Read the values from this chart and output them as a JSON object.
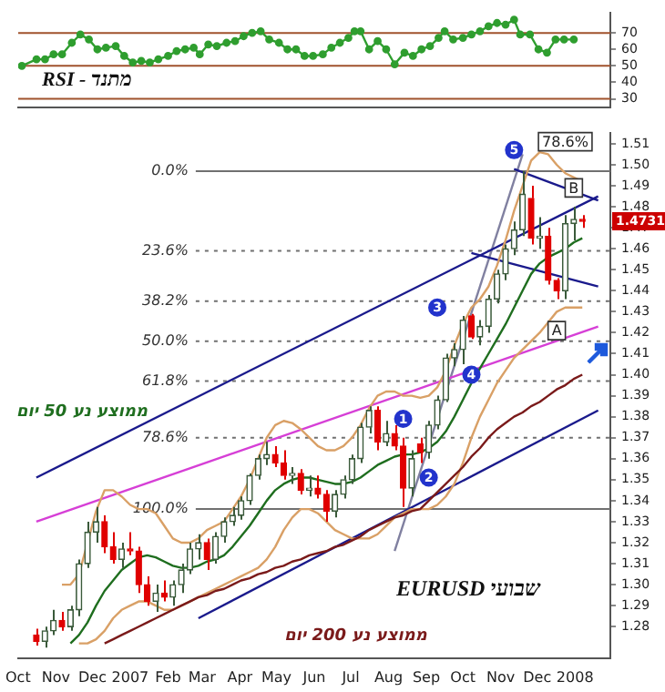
{
  "chart_data": [
    {
      "type": "line",
      "x": [
        "2006-10-04",
        "2006-10-16",
        "2006-10-23",
        "2006-10-30",
        "2006-11-06",
        "2006-11-14",
        "2006-11-21",
        "2006-11-28",
        "2006-12-05",
        "2006-12-12",
        "2006-12-20",
        "2006-12-27",
        "2007-01-03",
        "2007-01-10",
        "2007-01-17",
        "2007-01-24",
        "2007-02-01",
        "2007-02-08",
        "2007-02-15",
        "2007-02-22",
        "2007-02-27",
        "2007-03-06",
        "2007-03-13",
        "2007-03-21",
        "2007-03-28",
        "2007-04-04",
        "2007-04-11",
        "2007-04-18",
        "2007-04-25",
        "2007-05-03",
        "2007-05-10",
        "2007-05-17",
        "2007-05-24",
        "2007-05-31",
        "2007-06-08",
        "2007-06-15",
        "2007-06-22",
        "2007-06-29",
        "2007-07-04",
        "2007-07-09",
        "2007-07-16",
        "2007-07-23",
        "2007-07-30",
        "2007-08-06",
        "2007-08-14",
        "2007-08-21",
        "2007-08-28",
        "2007-09-04",
        "2007-09-11",
        "2007-09-16",
        "2007-09-23",
        "2007-10-01",
        "2007-10-08",
        "2007-10-15",
        "2007-10-22",
        "2007-10-29",
        "2007-11-05",
        "2007-11-12",
        "2007-11-17",
        "2007-11-25",
        "2007-12-02",
        "2007-12-09",
        "2007-12-16",
        "2007-12-23",
        "2007-12-31"
      ],
      "values": [
        50,
        54,
        54,
        57,
        57,
        64,
        69,
        66,
        60,
        61,
        62,
        56,
        52,
        53,
        52,
        54,
        56,
        59,
        60,
        61,
        57,
        63,
        62,
        64,
        65,
        68,
        70,
        71,
        66,
        64,
        60,
        60,
        56,
        56,
        57,
        61,
        64,
        67,
        71,
        71,
        60,
        65,
        60,
        51,
        58,
        56,
        60,
        62,
        67,
        71,
        66,
        67,
        69,
        71,
        74,
        76,
        75,
        78,
        69,
        69,
        60,
        58,
        66,
        66,
        66
      ],
      "color": "#2f9e2f",
      "marker": "circle",
      "xlim": [
        "2006-10-01",
        "2008-01-30"
      ],
      "ylim": [
        25,
        82
      ],
      "yticks": [
        30,
        40,
        50,
        60,
        70
      ],
      "tick_labels": "y",
      "ref_lines": [
        {
          "axis": "y",
          "value": 70,
          "color": "#a0522d"
        },
        {
          "axis": "y",
          "value": 50,
          "color": "#a0522d"
        },
        {
          "axis": "y",
          "value": 30,
          "color": "#a0522d"
        }
      ],
      "annotations": [
        "RSI - מתנד"
      ]
    },
    {
      "type": "candlestick",
      "x": [
        "2006-10-16",
        "2006-10-23",
        "2006-10-30",
        "2006-11-06",
        "2006-11-13",
        "2006-11-20",
        "2006-11-27",
        "2006-12-04",
        "2006-12-11",
        "2006-12-18",
        "2006-12-25",
        "2007-01-01",
        "2007-01-08",
        "2007-01-15",
        "2007-01-22",
        "2007-01-29",
        "2007-02-05",
        "2007-02-12",
        "2007-02-19",
        "2007-02-26",
        "2007-03-05",
        "2007-03-12",
        "2007-03-19",
        "2007-03-26",
        "2007-04-02",
        "2007-04-09",
        "2007-04-16",
        "2007-04-23",
        "2007-04-30",
        "2007-05-07",
        "2007-05-14",
        "2007-05-21",
        "2007-05-28",
        "2007-06-04",
        "2007-06-11",
        "2007-06-18",
        "2007-06-25",
        "2007-07-02",
        "2007-07-09",
        "2007-07-16",
        "2007-07-23",
        "2007-07-30",
        "2007-08-06",
        "2007-08-13",
        "2007-08-20",
        "2007-08-27",
        "2007-09-03",
        "2007-09-10",
        "2007-09-17",
        "2007-09-24",
        "2007-10-01",
        "2007-10-08",
        "2007-10-15",
        "2007-10-22",
        "2007-10-29",
        "2007-11-05",
        "2007-11-12",
        "2007-11-19",
        "2007-11-26",
        "2007-12-03",
        "2007-12-10",
        "2007-12-17",
        "2007-12-24",
        "2007-12-31",
        "2008-01-07"
      ],
      "ohlc": [
        [
          1.276,
          1.279,
          1.271,
          1.273
        ],
        [
          1.273,
          1.28,
          1.27,
          1.278
        ],
        [
          1.278,
          1.288,
          1.276,
          1.283
        ],
        [
          1.283,
          1.287,
          1.278,
          1.28
        ],
        [
          1.28,
          1.29,
          1.278,
          1.288
        ],
        [
          1.288,
          1.312,
          1.285,
          1.31
        ],
        [
          1.31,
          1.33,
          1.308,
          1.325
        ],
        [
          1.325,
          1.337,
          1.32,
          1.33
        ],
        [
          1.33,
          1.333,
          1.315,
          1.318
        ],
        [
          1.318,
          1.325,
          1.31,
          1.312
        ],
        [
          1.312,
          1.32,
          1.308,
          1.317
        ],
        [
          1.317,
          1.325,
          1.314,
          1.316
        ],
        [
          1.316,
          1.318,
          1.296,
          1.3
        ],
        [
          1.3,
          1.304,
          1.29,
          1.292
        ],
        [
          1.292,
          1.3,
          1.287,
          1.296
        ],
        [
          1.296,
          1.302,
          1.292,
          1.294
        ],
        [
          1.294,
          1.302,
          1.29,
          1.3
        ],
        [
          1.3,
          1.31,
          1.296,
          1.307
        ],
        [
          1.307,
          1.32,
          1.305,
          1.317
        ],
        [
          1.317,
          1.324,
          1.312,
          1.32
        ],
        [
          1.32,
          1.322,
          1.307,
          1.312
        ],
        [
          1.312,
          1.325,
          1.31,
          1.323
        ],
        [
          1.323,
          1.332,
          1.32,
          1.33
        ],
        [
          1.33,
          1.337,
          1.328,
          1.333
        ],
        [
          1.333,
          1.342,
          1.331,
          1.34
        ],
        [
          1.34,
          1.353,
          1.338,
          1.352
        ],
        [
          1.352,
          1.362,
          1.35,
          1.36
        ],
        [
          1.36,
          1.368,
          1.357,
          1.362
        ],
        [
          1.362,
          1.366,
          1.356,
          1.358
        ],
        [
          1.358,
          1.364,
          1.35,
          1.352
        ],
        [
          1.352,
          1.356,
          1.348,
          1.353
        ],
        [
          1.353,
          1.355,
          1.343,
          1.345
        ],
        [
          1.345,
          1.352,
          1.342,
          1.346
        ],
        [
          1.346,
          1.352,
          1.341,
          1.343
        ],
        [
          1.343,
          1.345,
          1.33,
          1.335
        ],
        [
          1.335,
          1.345,
          1.332,
          1.343
        ],
        [
          1.343,
          1.352,
          1.341,
          1.35
        ],
        [
          1.35,
          1.362,
          1.348,
          1.36
        ],
        [
          1.36,
          1.377,
          1.358,
          1.375
        ],
        [
          1.375,
          1.385,
          1.372,
          1.383
        ],
        [
          1.383,
          1.385,
          1.364,
          1.368
        ],
        [
          1.368,
          1.378,
          1.366,
          1.372
        ],
        [
          1.372,
          1.376,
          1.364,
          1.366
        ],
        [
          1.366,
          1.37,
          1.337,
          1.346
        ],
        [
          1.346,
          1.364,
          1.342,
          1.36
        ],
        [
          1.367,
          1.37,
          1.358,
          1.363
        ],
        [
          1.363,
          1.378,
          1.36,
          1.376
        ],
        [
          1.376,
          1.39,
          1.374,
          1.388
        ],
        [
          1.388,
          1.41,
          1.387,
          1.408
        ],
        [
          1.408,
          1.415,
          1.404,
          1.412
        ],
        [
          1.412,
          1.428,
          1.405,
          1.426
        ],
        [
          1.428,
          1.429,
          1.417,
          1.418
        ],
        [
          1.418,
          1.426,
          1.414,
          1.423
        ],
        [
          1.423,
          1.438,
          1.42,
          1.436
        ],
        [
          1.436,
          1.45,
          1.434,
          1.448
        ],
        [
          1.448,
          1.462,
          1.445,
          1.46
        ],
        [
          1.46,
          1.473,
          1.457,
          1.469
        ],
        [
          1.469,
          1.497,
          1.466,
          1.486
        ],
        [
          1.484,
          1.49,
          1.462,
          1.465
        ],
        [
          1.465,
          1.475,
          1.46,
          1.466
        ],
        [
          1.466,
          1.47,
          1.443,
          1.445
        ],
        [
          1.445,
          1.446,
          1.436,
          1.44
        ],
        [
          1.44,
          1.476,
          1.436,
          1.472
        ],
        [
          1.472,
          1.48,
          1.464,
          1.474
        ],
        [
          1.474,
          1.476,
          1.47,
          1.4731
        ]
      ],
      "series": [
        {
          "type": "line",
          "name": "ממוצע נע 50 יום",
          "color": "#1f6e1f",
          "values": [
            null,
            null,
            null,
            null,
            1.272,
            1.276,
            1.282,
            1.29,
            1.297,
            1.302,
            1.307,
            1.31,
            1.313,
            1.314,
            1.313,
            1.311,
            1.309,
            1.308,
            1.308,
            1.309,
            1.311,
            1.312,
            1.314,
            1.318,
            1.323,
            1.328,
            1.334,
            1.34,
            1.345,
            1.348,
            1.35,
            1.351,
            1.351,
            1.35,
            1.349,
            1.348,
            1.348,
            1.349,
            1.351,
            1.354,
            1.357,
            1.359,
            1.361,
            1.362,
            1.362,
            1.363,
            1.365,
            1.368,
            1.373,
            1.38,
            1.388,
            1.396,
            1.403,
            1.41,
            1.417,
            1.424,
            1.432,
            1.44,
            1.448,
            1.453,
            1.456,
            1.458,
            1.46,
            1.463,
            1.465
          ]
        },
        {
          "type": "line",
          "name": "ממוצע נע 200 יום",
          "color": "#7a1a1a",
          "values": [
            null,
            null,
            null,
            null,
            null,
            null,
            null,
            null,
            1.272,
            1.274,
            1.276,
            1.278,
            1.28,
            1.282,
            1.284,
            1.286,
            1.288,
            1.29,
            1.292,
            1.294,
            1.295,
            1.297,
            1.298,
            1.3,
            1.302,
            1.303,
            1.305,
            1.306,
            1.308,
            1.309,
            1.311,
            1.312,
            1.314,
            1.315,
            1.316,
            1.318,
            1.319,
            1.321,
            1.323,
            1.326,
            1.328,
            1.33,
            1.332,
            1.333,
            1.335,
            1.336,
            1.34,
            1.344,
            1.348,
            1.352,
            1.356,
            1.361,
            1.365,
            1.37,
            1.374,
            1.377,
            1.38,
            1.382,
            1.385,
            1.387,
            1.39,
            1.393,
            1.395,
            1.398,
            1.4
          ]
        },
        {
          "type": "line",
          "color": "#d9a066",
          "values": [
            null,
            null,
            null,
            1.3,
            1.3,
            1.305,
            1.32,
            1.335,
            1.345,
            1.345,
            1.342,
            1.338,
            1.336,
            1.336,
            1.334,
            1.328,
            1.322,
            1.32,
            1.32,
            1.322,
            1.326,
            1.328,
            1.33,
            1.336,
            1.342,
            1.35,
            1.36,
            1.37,
            1.376,
            1.378,
            1.377,
            1.374,
            1.37,
            1.366,
            1.364,
            1.364,
            1.366,
            1.37,
            1.376,
            1.384,
            1.39,
            1.392,
            1.392,
            1.39,
            1.39,
            1.389,
            1.39,
            1.394,
            1.402,
            1.414,
            1.424,
            1.432,
            1.436,
            1.442,
            1.452,
            1.464,
            1.478,
            1.49,
            1.502,
            1.506,
            1.505,
            1.5,
            1.496,
            1.494,
            1.492
          ]
        },
        {
          "type": "line",
          "color": "#d9a066",
          "values": [
            null,
            null,
            null,
            null,
            null,
            1.272,
            1.272,
            1.274,
            1.278,
            1.284,
            1.288,
            1.29,
            1.292,
            1.292,
            1.29,
            1.288,
            1.288,
            1.29,
            1.292,
            1.294,
            1.296,
            1.298,
            1.3,
            1.302,
            1.304,
            1.306,
            1.308,
            1.312,
            1.318,
            1.326,
            1.332,
            1.336,
            1.336,
            1.334,
            1.33,
            1.326,
            1.324,
            1.322,
            1.322,
            1.322,
            1.324,
            1.328,
            1.332,
            1.334,
            1.336,
            1.336,
            1.336,
            1.338,
            1.342,
            1.348,
            1.358,
            1.37,
            1.38,
            1.388,
            1.396,
            1.402,
            1.408,
            1.412,
            1.416,
            1.42,
            1.425,
            1.43,
            1.432,
            1.432,
            1.432
          ]
        },
        {
          "type": "line",
          "color": "#1a1a8c",
          "x": [
            "2006-10-16",
            "2008-01-20"
          ],
          "values": [
            1.351,
            1.485
          ]
        },
        {
          "type": "line",
          "color": "#1a1a8c",
          "x": [
            "2007-02-26",
            "2008-01-20"
          ],
          "values": [
            1.284,
            1.383
          ]
        },
        {
          "type": "line",
          "color": "#1a1a8c",
          "x": [
            "2007-10-08",
            "2008-01-20"
          ],
          "values": [
            1.458,
            1.442
          ]
        },
        {
          "type": "line",
          "color": "#1a1a8c",
          "x": [
            "2007-11-12",
            "2008-01-20"
          ],
          "values": [
            1.498,
            1.483
          ]
        },
        {
          "type": "line",
          "color": "#d63fd6",
          "x": [
            "2006-10-16",
            "2008-01-20"
          ],
          "values": [
            1.33,
            1.423
          ]
        },
        {
          "type": "line",
          "color": "#8080a0",
          "x": [
            "2007-08-06",
            "2007-11-19"
          ],
          "values": [
            1.316,
            1.505
          ]
        }
      ],
      "xlim": [
        "2006-10-01",
        "2008-01-30"
      ],
      "xticks": [
        {
          "value": "2006-10-01",
          "label": "Oct"
        },
        {
          "value": "2006-11-01",
          "label": "Nov"
        },
        {
          "value": "2006-12-01",
          "label": "Dec"
        },
        {
          "value": "2007-01-01",
          "label": "2007"
        },
        {
          "value": "2007-02-01",
          "label": "Feb"
        },
        {
          "value": "2007-03-01",
          "label": "Mar"
        },
        {
          "value": "2007-04-01",
          "label": "Apr"
        },
        {
          "value": "2007-05-01",
          "label": "May"
        },
        {
          "value": "2007-06-01",
          "label": "Jun"
        },
        {
          "value": "2007-07-01",
          "label": "Jul"
        },
        {
          "value": "2007-08-01",
          "label": "Aug"
        },
        {
          "value": "2007-09-01",
          "label": "Sep"
        },
        {
          "value": "2007-10-01",
          "label": "Oct"
        },
        {
          "value": "2007-11-01",
          "label": "Nov"
        },
        {
          "value": "2007-12-01",
          "label": "Dec"
        },
        {
          "value": "2008-01-01",
          "label": "2008"
        }
      ],
      "ylim": [
        1.265,
        1.515
      ],
      "yticks": [
        1.28,
        1.29,
        {
          "value": 1.3,
          "label": "1.30"
        },
        1.31,
        1.32,
        1.33,
        1.34,
        1.35,
        1.36,
        1.37,
        1.38,
        1.39,
        {
          "value": 1.4,
          "label": "1.40"
        },
        1.41,
        1.42,
        1.43,
        1.44,
        1.45,
        1.46,
        1.47,
        1.48,
        1.49,
        {
          "value": 1.5,
          "label": "1.50"
        },
        1.51
      ],
      "ref_lines": [
        {
          "axis": "y",
          "value": 1.497,
          "color": "#707070",
          "line_style": "solid"
        },
        {
          "axis": "y",
          "value": 1.459,
          "color": "#707070",
          "line_style": "dotted"
        },
        {
          "axis": "y",
          "value": 1.435,
          "color": "#707070",
          "line_style": "dotted"
        },
        {
          "axis": "y",
          "value": 1.416,
          "color": "#707070",
          "line_style": "dotted"
        },
        {
          "axis": "y",
          "value": 1.397,
          "color": "#707070",
          "line_style": "dotted"
        },
        {
          "axis": "y",
          "value": 1.37,
          "color": "#707070",
          "line_style": "dotted"
        },
        {
          "axis": "y",
          "value": 1.336,
          "color": "#707070",
          "line_style": "solid"
        }
      ],
      "annotations": [
        {
          "text": "1",
          "x": "2007-08-13",
          "y": 1.379
        },
        {
          "text": "2",
          "x": "2007-09-03",
          "y": 1.351
        },
        {
          "text": "3",
          "x": "2007-09-10",
          "y": 1.432
        },
        {
          "text": "4",
          "x": "2007-10-08",
          "y": 1.4
        },
        {
          "text": "5",
          "x": "2007-11-12",
          "y": 1.507
        },
        {
          "text": "A",
          "x": "2007-12-17",
          "y": 1.421
        },
        {
          "text": "B",
          "x": "2007-12-31",
          "y": 1.489
        },
        {
          "text": "78.6%",
          "x": "2007-12-24",
          "y": 1.511
        },
        "0.0%",
        "23.6%",
        "38.2%",
        "50.0%",
        "61.8%",
        "78.6%",
        "100.0%",
        "1.4731",
        "EURUSD שבועי"
      ]
    }
  ]
}
